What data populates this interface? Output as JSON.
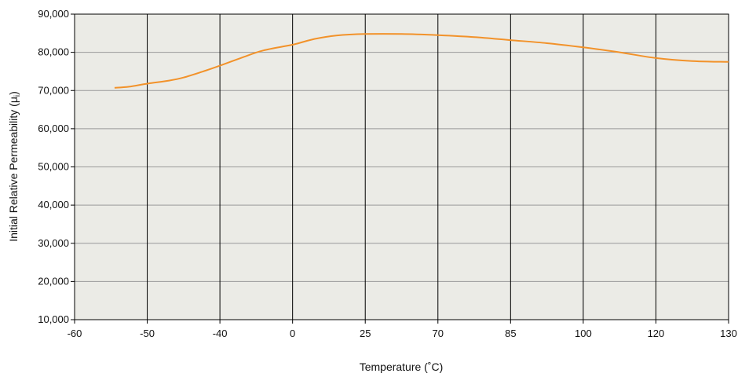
{
  "chart_data": {
    "type": "line",
    "xlabel": "Temperature (˚C)",
    "ylabel_main": "Initial Relative Permeability (μ",
    "ylabel_sub": "i",
    "ylabel_close": ")",
    "x_tick_labels": [
      "-60",
      "-50",
      "-40",
      "0",
      "25",
      "70",
      "85",
      "100",
      "120",
      "130"
    ],
    "y_tick_labels": [
      "10,000",
      "20,000",
      "30,000",
      "40,000",
      "50,000",
      "60,000",
      "70,000",
      "80,000",
      "90,000"
    ],
    "ylim": [
      10000,
      90000
    ],
    "grid": true,
    "colors": {
      "plot_bg": "#ebebe6",
      "line": "#f2922a",
      "grid_major": "#000000",
      "grid_minor": "#9a9a9a"
    },
    "series": [
      {
        "points": [
          [
            0.55,
            70700
          ],
          [
            0.75,
            71000
          ],
          [
            1.0,
            71800
          ],
          [
            1.3,
            72600
          ],
          [
            1.5,
            73400
          ],
          [
            1.8,
            75200
          ],
          [
            2.0,
            76500
          ],
          [
            2.3,
            78600
          ],
          [
            2.6,
            80500
          ],
          [
            3.0,
            82000
          ],
          [
            3.3,
            83500
          ],
          [
            3.6,
            84400
          ],
          [
            4.0,
            84800
          ],
          [
            4.5,
            84800
          ],
          [
            5.0,
            84500
          ],
          [
            5.5,
            84000
          ],
          [
            6.0,
            83200
          ],
          [
            6.5,
            82400
          ],
          [
            7.0,
            81300
          ],
          [
            7.5,
            80000
          ],
          [
            8.0,
            78500
          ],
          [
            8.5,
            77700
          ],
          [
            9.0,
            77500
          ]
        ]
      }
    ]
  }
}
